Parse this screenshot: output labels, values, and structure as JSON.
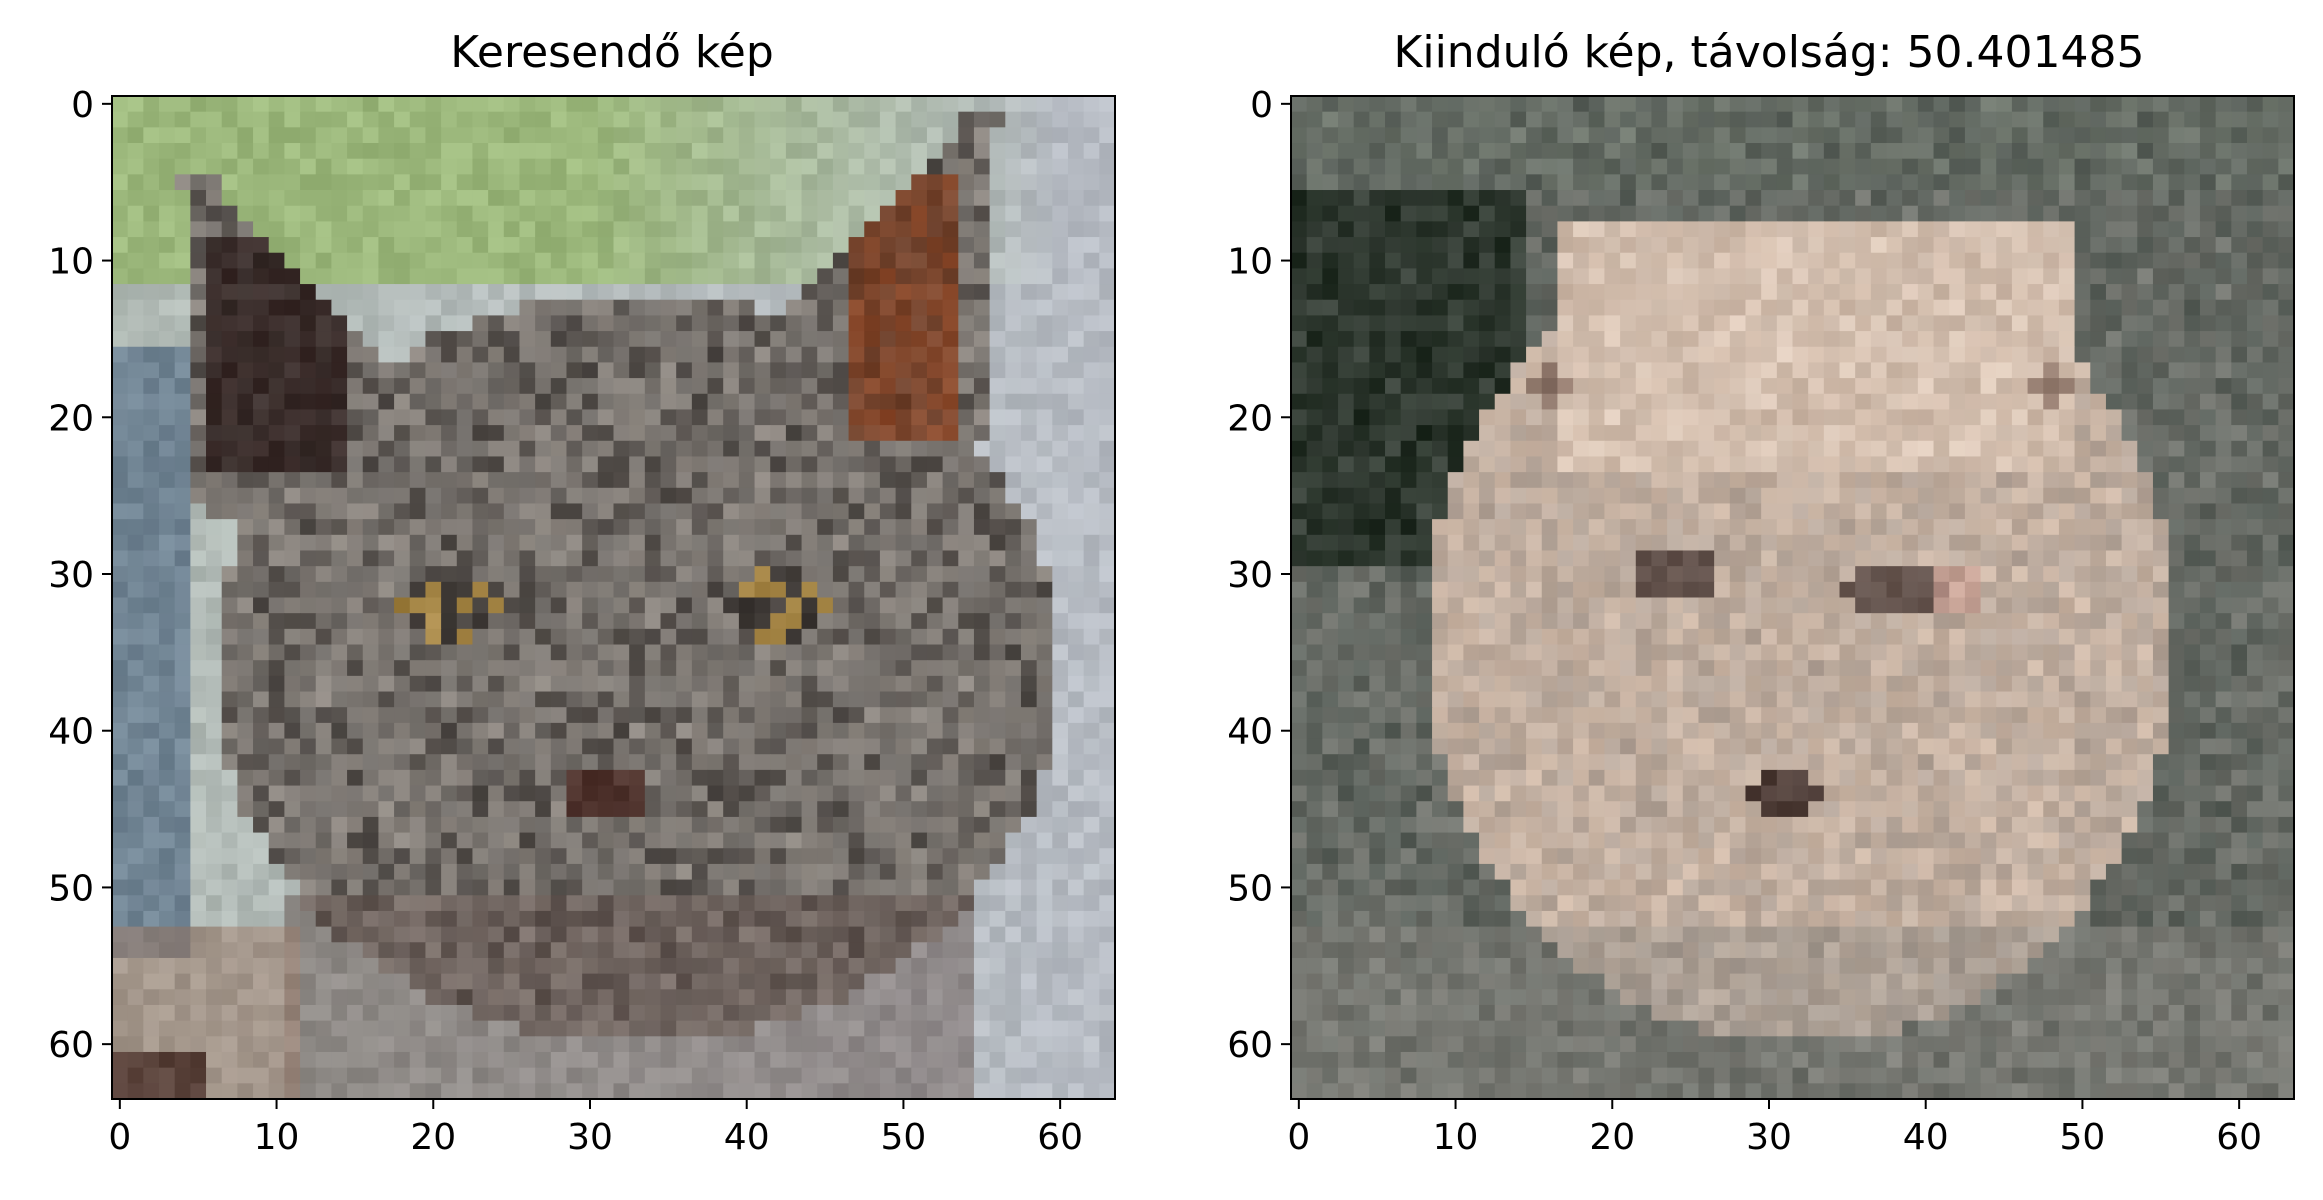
{
  "figure": {
    "panels": [
      {
        "title": "Keresendő kép",
        "image": {
          "description_icon": "pixelated-cat-photo",
          "palette": {
            "background_top": "#9cb87c",
            "background_right": "#b7bcc4",
            "fur_mid": "#6e6a66",
            "fur_dark": "#3a3532",
            "fur_light": "#a29a92",
            "ear_inner_left": "#3b2c2a",
            "ear_inner_right": "#8b4a2c",
            "eye": "#b08a3c",
            "nose": "#4a2a24",
            "shadow_left": "#3c5878",
            "chest": "#6b5a55"
          }
        },
        "x_ticks": [
          "0",
          "10",
          "20",
          "30",
          "40",
          "50",
          "60"
        ],
        "y_ticks": [
          "0",
          "10",
          "20",
          "30",
          "40",
          "50",
          "60"
        ]
      },
      {
        "title": "Kiinduló kép, távolság: 50.401485",
        "image": {
          "description_icon": "pixelated-generated-dog-photo",
          "palette": {
            "background": "#59605a",
            "background_dark": "#1f2a20",
            "fur_light": "#cdb7a6",
            "fur_mid": "#a89c93",
            "fur_gray": "#8d8a84",
            "eye": "#4a3a36",
            "nose": "#3b2a26",
            "cheek_pink": "#c99a8e"
          }
        },
        "x_ticks": [
          "0",
          "10",
          "20",
          "30",
          "40",
          "50",
          "60"
        ],
        "y_ticks": [
          "0",
          "10",
          "20",
          "30",
          "40",
          "50",
          "60"
        ]
      }
    ],
    "image_size": 64
  }
}
